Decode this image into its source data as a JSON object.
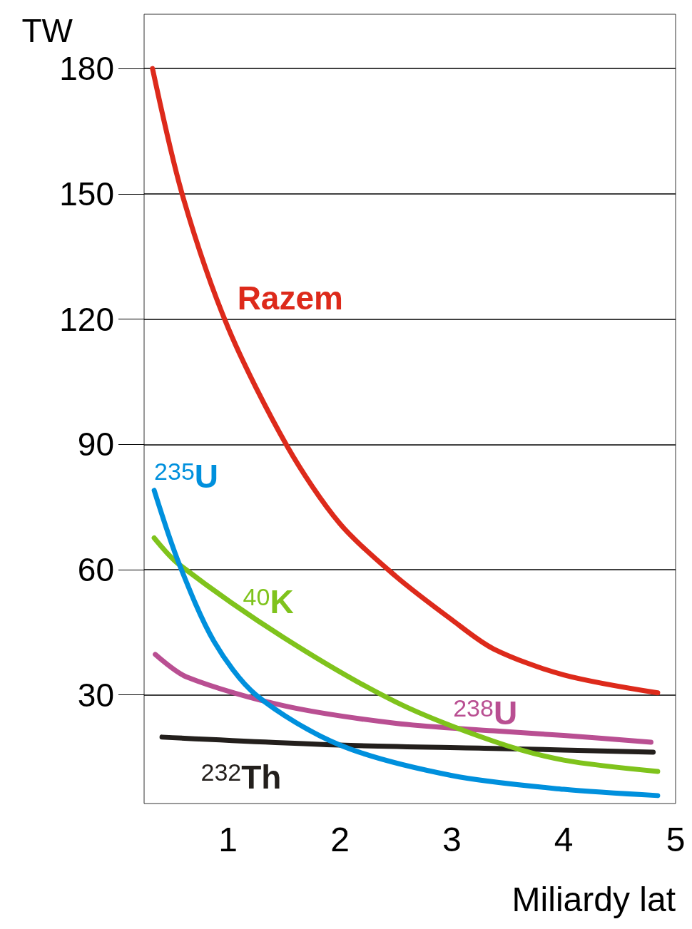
{
  "chart_data": {
    "type": "line",
    "xlabel": "Miliardy lat",
    "ylabel": "TW",
    "xlim": [
      0.25,
      5
    ],
    "xticks": [
      1,
      2,
      3,
      4,
      5
    ],
    "ylim": [
      4,
      193
    ],
    "yticks": [
      30,
      60,
      90,
      120,
      150,
      180
    ],
    "grid": "y",
    "legend": false,
    "marker": "none",
    "line_style": "solid",
    "series": [
      {
        "name": "Razem",
        "color": "#dd2a1b",
        "x": [
          0.325,
          0.6,
          1,
          1.53,
          2,
          2.5,
          3,
          3.375,
          4,
          4.84
        ],
        "values": [
          180,
          149,
          118,
          89.5,
          71,
          58.4,
          48,
          41,
          34.8,
          30.5
        ]
      },
      {
        "name": "$^{235}$U",
        "color": "#0090dd",
        "x": [
          0.34,
          0.56,
          0.875,
          1.25,
          2,
          3,
          4,
          4.84
        ],
        "values": [
          79,
          61.6,
          42.8,
          30,
          18,
          10.7,
          7.4,
          5.9
        ]
      },
      {
        "name": "$^{40}$K",
        "color": "#7fc31c",
        "x": [
          0.34,
          0.56,
          1.5,
          2.5,
          3.375,
          4,
          4.84
        ],
        "values": [
          67.6,
          61.3,
          43.7,
          28.3,
          18.9,
          14.4,
          11.7
        ]
      },
      {
        "name": "$^{238}$U",
        "color": "#b94f92",
        "x": [
          0.35,
          0.63,
          1.5,
          2.5,
          3.375,
          4,
          4.78
        ],
        "values": [
          39.7,
          34.3,
          27.4,
          23.2,
          21.4,
          20.3,
          18.7
        ]
      },
      {
        "name": "$^{232}$Th",
        "color": "#231f1c",
        "x": [
          0.41,
          2,
          3.375,
          4.8
        ],
        "values": [
          19.9,
          18,
          17.2,
          16.3
        ]
      }
    ]
  }
}
